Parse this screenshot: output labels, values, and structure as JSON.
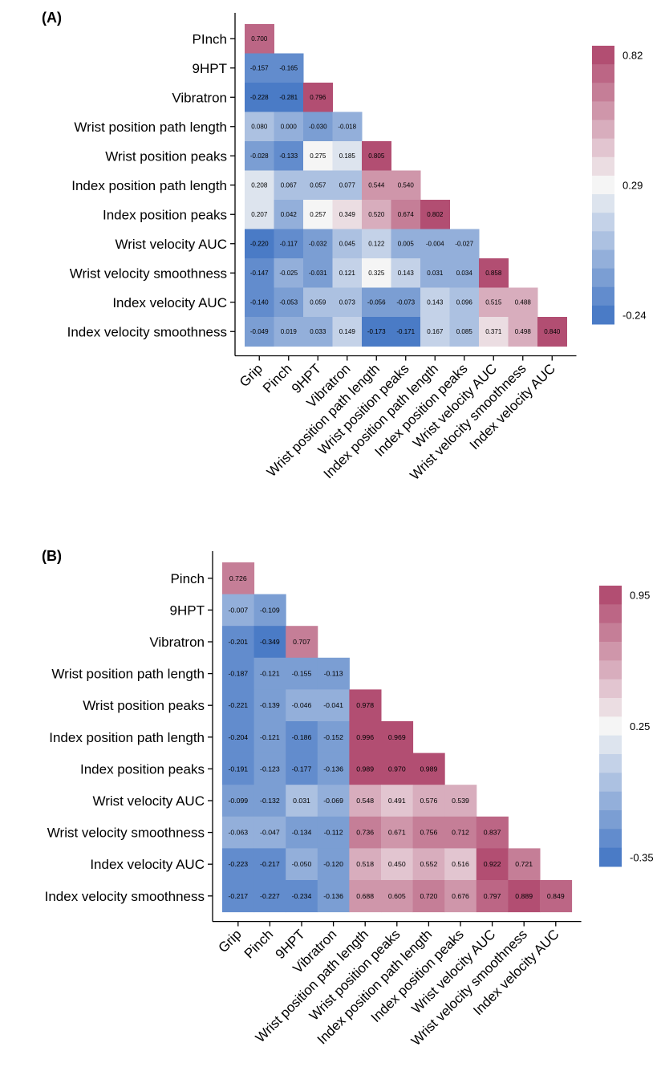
{
  "chart_data": [
    {
      "type": "heatmap",
      "panel_label": "(A)",
      "row_labels": [
        "PInch",
        "9HPT",
        "Vibratron",
        "Wrist position path length",
        "Wrist position peaks",
        "Index position path length",
        "Index position peaks",
        "Wrist velocity AUC",
        "Wrist velocity smoothness",
        "Index velocity AUC",
        "Index velocity smoothness"
      ],
      "col_labels": [
        "Grip",
        "Pinch",
        "9HPT",
        "Vibratron",
        "Wrist position path length",
        "Wrist position peaks",
        "Index position path length",
        "Index position peaks",
        "Wrist velocity AUC",
        "Wrist velocity smoothness",
        "Index velocity AUC"
      ],
      "values": [
        [
          0.7
        ],
        [
          -0.157,
          -0.165
        ],
        [
          -0.228,
          -0.281,
          0.796
        ],
        [
          0.08,
          0.0,
          -0.03,
          -0.018
        ],
        [
          -0.028,
          -0.133,
          0.275,
          0.185,
          0.805
        ],
        [
          0.208,
          0.067,
          0.057,
          0.077,
          0.544,
          0.54
        ],
        [
          0.207,
          0.042,
          0.257,
          0.349,
          0.52,
          0.674,
          0.802
        ],
        [
          -0.22,
          -0.117,
          -0.032,
          0.045,
          0.122,
          0.005,
          -0.004,
          -0.027
        ],
        [
          -0.147,
          -0.025,
          -0.031,
          0.121,
          0.325,
          0.143,
          0.031,
          0.034,
          0.858
        ],
        [
          -0.14,
          -0.053,
          0.059,
          0.073,
          -0.056,
          -0.073,
          0.143,
          0.096,
          0.515,
          0.488
        ],
        [
          -0.049,
          0.019,
          0.033,
          0.149,
          -0.173,
          -0.171,
          0.167,
          0.085,
          0.371,
          0.498,
          0.84
        ]
      ],
      "value_labels": [
        [
          "0.700"
        ],
        [
          "-0.157",
          "-0.165"
        ],
        [
          "-0.228",
          "-0.281",
          "0.796"
        ],
        [
          "0.080",
          "0.000",
          "-0.030",
          "-0.018"
        ],
        [
          "-0.028",
          "-0.133",
          "0.275",
          "0.185",
          "0.805"
        ],
        [
          "0.208",
          "0.067",
          "0.057",
          "0.077",
          "0.544",
          "0.540"
        ],
        [
          "0.207",
          "0.042",
          "0.257",
          "0.349",
          "0.520",
          "0.674",
          "0.802"
        ],
        [
          "-0.220",
          "-0.117",
          "-0.032",
          "0.045",
          "0.122",
          "0.005",
          "-0.004",
          "-0.027"
        ],
        [
          "-0.147",
          "-0.025",
          "-0.031",
          "0.121",
          "0.325",
          "0.143",
          "0.031",
          "0.034",
          "0.858"
        ],
        [
          "-0.140",
          "-0.053",
          "0.059",
          "0.073",
          "-0.056",
          "-0.073",
          "0.143",
          "0.096",
          "0.515",
          "0.488"
        ],
        [
          "-0.049",
          "0.019",
          "0.033",
          "0.149",
          "-0.173",
          "-0.171",
          "0.167",
          "0.085",
          "0.371",
          "0.498",
          "0.840"
        ]
      ],
      "colorbar": {
        "min": -0.24,
        "mid": 0.29,
        "max": 0.82,
        "tick_labels": [
          "0.82",
          "0.29",
          "-0.24"
        ],
        "steps": 15
      }
    },
    {
      "type": "heatmap",
      "panel_label": "(B)",
      "row_labels": [
        "Pinch",
        "9HPT",
        "Vibratron",
        "Wrist position path length",
        "Wrist position peaks",
        "Index position path length",
        "Index position peaks",
        "Wrist velocity AUC",
        "Wrist velocity smoothness",
        "Index velocity AUC",
        "Index velocity smoothness"
      ],
      "col_labels": [
        "Grip",
        "Pinch",
        "9HPT",
        "Vibratron",
        "Wrist position path length",
        "Wrist position peaks",
        "Index position path length",
        "Index position peaks",
        "Wrist velocity AUC",
        "Wrist velocity smoothness",
        "Index velocity AUC"
      ],
      "values": [
        [
          0.726
        ],
        [
          -0.007,
          -0.109
        ],
        [
          -0.201,
          -0.349,
          0.707
        ],
        [
          -0.187,
          -0.121,
          -0.155,
          -0.113
        ],
        [
          -0.221,
          -0.139,
          -0.046,
          -0.041,
          0.978
        ],
        [
          -0.204,
          -0.121,
          -0.186,
          -0.152,
          0.996,
          0.969
        ],
        [
          -0.191,
          -0.123,
          -0.177,
          -0.136,
          0.989,
          0.97,
          0.989
        ],
        [
          -0.099,
          -0.132,
          0.031,
          -0.069,
          0.548,
          0.491,
          0.576,
          0.539
        ],
        [
          -0.063,
          -0.047,
          -0.134,
          -0.112,
          0.736,
          0.671,
          0.756,
          0.712,
          0.837
        ],
        [
          -0.223,
          -0.217,
          -0.05,
          -0.12,
          0.518,
          0.45,
          0.552,
          0.516,
          0.922,
          0.721
        ],
        [
          -0.217,
          -0.227,
          -0.234,
          -0.136,
          0.688,
          0.605,
          0.72,
          0.676,
          0.797,
          0.889,
          0.849
        ]
      ],
      "value_labels": [
        [
          "0.726"
        ],
        [
          "-0.007",
          "-0.109"
        ],
        [
          "-0.201",
          "-0.349",
          "0.707"
        ],
        [
          "-0.187",
          "-0.121",
          "-0.155",
          "-0.113"
        ],
        [
          "-0.221",
          "-0.139",
          "-0.046",
          "-0.041",
          "0.978"
        ],
        [
          "-0.204",
          "-0.121",
          "-0.186",
          "-0.152",
          "0.996",
          "0.969"
        ],
        [
          "-0.191",
          "-0.123",
          "-0.177",
          "-0.136",
          "0.989",
          "0.970",
          "0.989"
        ],
        [
          "-0.099",
          "-0.132",
          "0.031",
          "-0.069",
          "0.548",
          "0.491",
          "0.576",
          "0.539"
        ],
        [
          "-0.063",
          "-0.047",
          "-0.134",
          "-0.112",
          "0.736",
          "0.671",
          "0.756",
          "0.712",
          "0.837"
        ],
        [
          "-0.223",
          "-0.217",
          "-0.050",
          "-0.120",
          "0.518",
          "0.450",
          "0.552",
          "0.516",
          "0.922",
          "0.721"
        ],
        [
          "-0.217",
          "-0.227",
          "-0.234",
          "-0.136",
          "0.688",
          "0.605",
          "0.720",
          "0.676",
          "0.797",
          "0.889",
          "0.849"
        ]
      ],
      "colorbar": {
        "min": -0.35,
        "mid": 0.25,
        "max": 0.95,
        "tick_labels": [
          "0.95",
          "0.25",
          "-0.35"
        ],
        "steps": 15
      }
    }
  ],
  "colors": {
    "low": "#4a7bc6",
    "mid": "#f5f5f5",
    "high": "#b24e72",
    "text": "#000000"
  }
}
